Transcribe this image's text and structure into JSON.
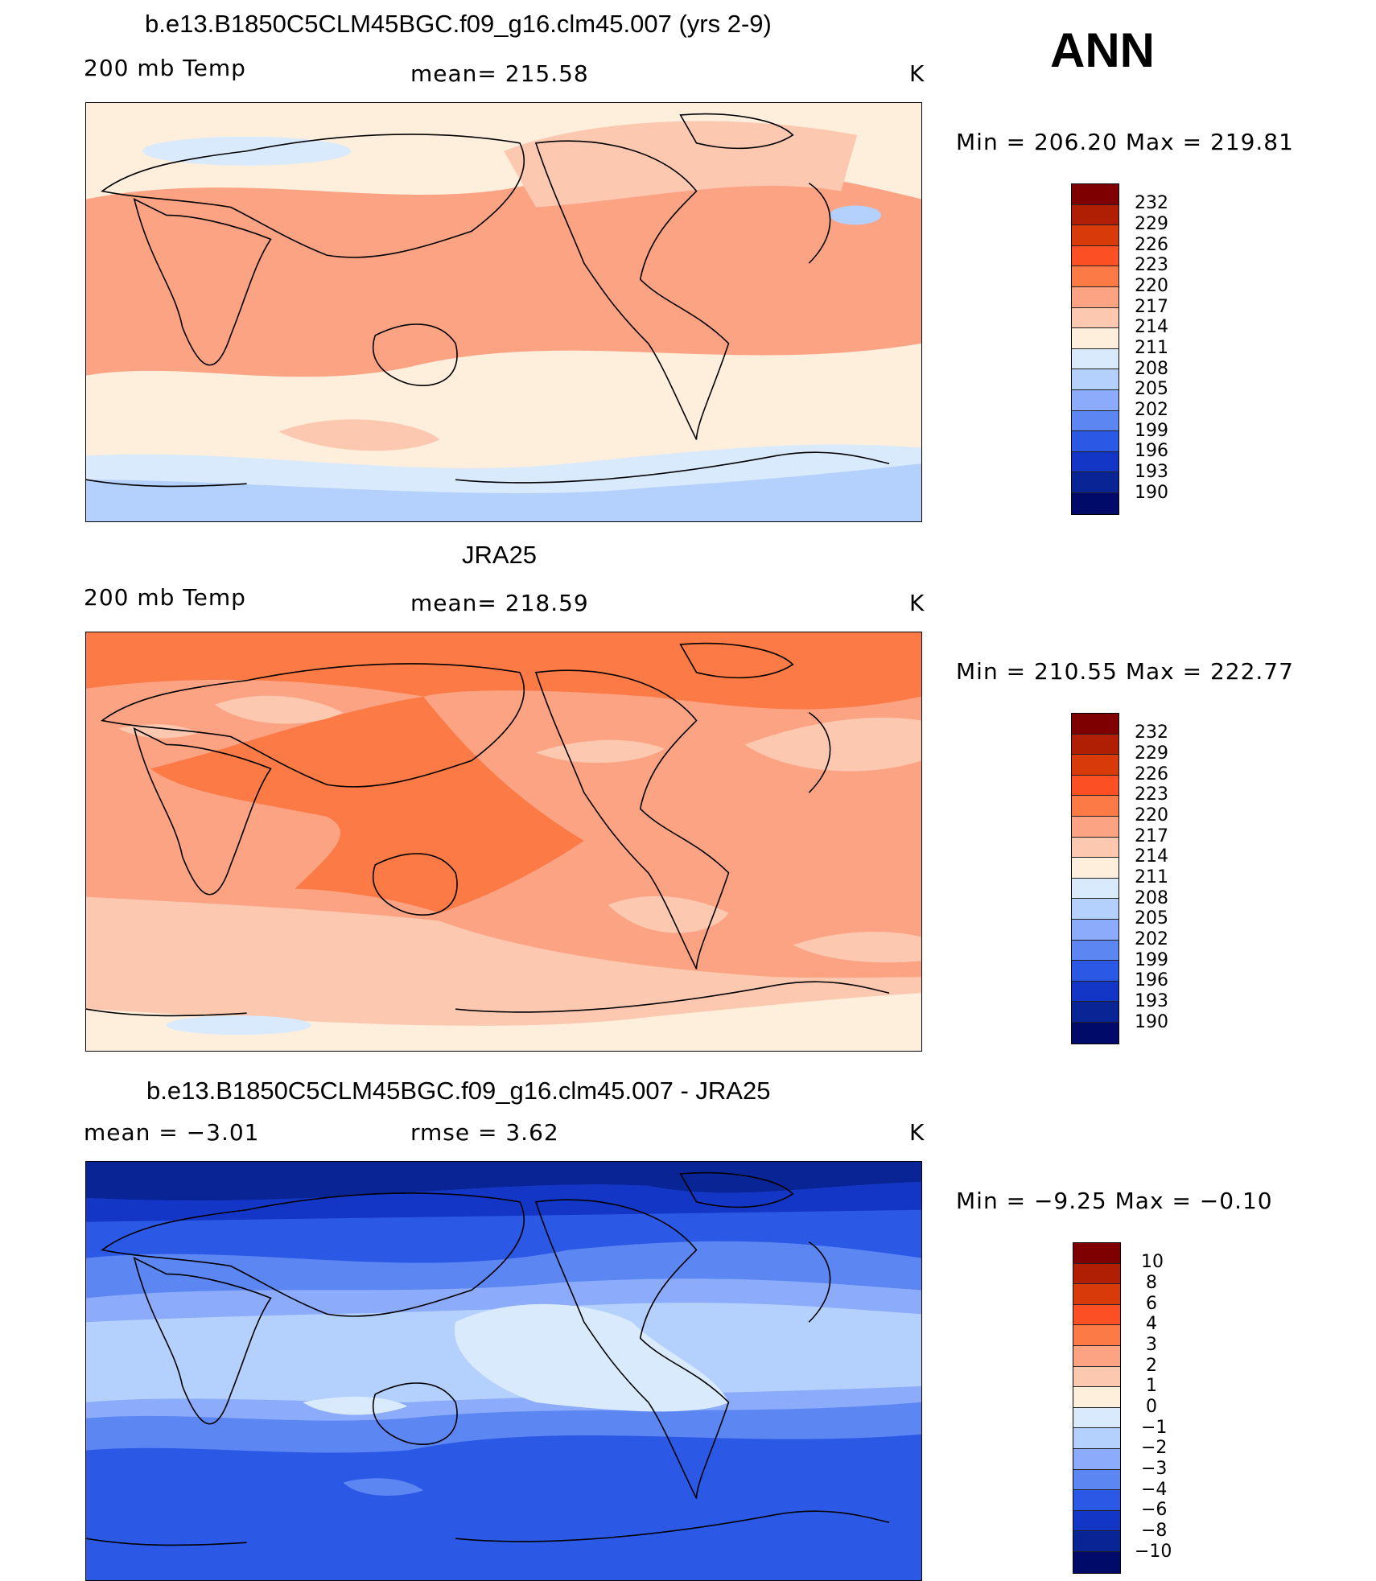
{
  "header": {
    "season": "ANN"
  },
  "panels": [
    {
      "title": "b.e13.B1850C5CLM45BGC.f09_g16.clm45.007 (yrs 2-9)",
      "left_label": "200 mb Temp",
      "center_label": "mean=  215.58",
      "units": "K",
      "minmax": "Min  =  206.20  Max  =  219.81",
      "colorbar_labels": [
        "232",
        "229",
        "226",
        "223",
        "220",
        "217",
        "214",
        "211",
        "208",
        "205",
        "202",
        "199",
        "196",
        "193",
        "190"
      ]
    },
    {
      "title": "JRA25",
      "left_label": "200 mb Temp",
      "center_label": "mean=  218.59",
      "units": "K",
      "minmax": "Min  =  210.55  Max  =  222.77",
      "colorbar_labels": [
        "232",
        "229",
        "226",
        "223",
        "220",
        "217",
        "214",
        "211",
        "208",
        "205",
        "202",
        "199",
        "196",
        "193",
        "190"
      ]
    },
    {
      "title": "b.e13.B1850C5CLM45BGC.f09_g16.clm45.007 - JRA25",
      "left_label": "mean  =    −3.01",
      "center_label": "rmse  =     3.62",
      "units": "K",
      "minmax": "Min  =    −9.25  Max  =    −0.10",
      "colorbar_labels": [
        "10",
        "8",
        "6",
        "4",
        "3",
        "2",
        "1",
        "0",
        "−1",
        "−2",
        "−3",
        "−4",
        "−6",
        "−8",
        "−10"
      ]
    }
  ],
  "colors": {
    "abs_scale": [
      "#7f0000",
      "#b01e04",
      "#d83a0a",
      "#fc5024",
      "#fb7a46",
      "#fca384",
      "#fcc9b0",
      "#feeedc",
      "#d8eafc",
      "#b4d0fc",
      "#8cacfb",
      "#5c86f2",
      "#2c58e6",
      "#1436c6",
      "#082495",
      "#000b69"
    ],
    "diff_scale": [
      "#7f0000",
      "#b01e04",
      "#d83a0a",
      "#fc5024",
      "#fb7a46",
      "#fca384",
      "#fcc9b0",
      "#feeedc",
      "#d8eafc",
      "#b4d0fc",
      "#8cacfb",
      "#5c86f2",
      "#2c58e6",
      "#1436c6",
      "#082495",
      "#000b69"
    ]
  }
}
